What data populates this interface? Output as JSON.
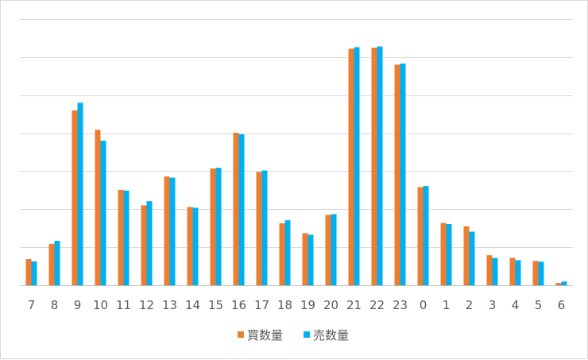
{
  "chart_data": {
    "type": "bar",
    "categories": [
      "7",
      "8",
      "9",
      "10",
      "11",
      "12",
      "13",
      "14",
      "15",
      "16",
      "17",
      "18",
      "19",
      "20",
      "21",
      "22",
      "23",
      "0",
      "1",
      "2",
      "3",
      "4",
      "5",
      "6"
    ],
    "series": [
      {
        "name": "買数量",
        "color": "#ED7D31",
        "values": [
          6.9,
          10.9,
          46.0,
          40.9,
          25.1,
          21.0,
          28.6,
          20.6,
          30.7,
          40.1,
          29.8,
          16.3,
          13.7,
          18.5,
          62.2,
          62.5,
          58.0,
          25.8,
          16.4,
          15.5,
          7.9,
          7.2,
          6.4,
          0.6
        ]
      },
      {
        "name": "売数量",
        "color": "#00B0F0",
        "values": [
          6.3,
          11.7,
          48.0,
          38.0,
          24.9,
          22.1,
          28.3,
          20.4,
          30.9,
          39.7,
          30.2,
          17.1,
          13.3,
          18.7,
          62.6,
          62.8,
          58.3,
          26.1,
          16.1,
          14.1,
          7.2,
          6.6,
          6.2,
          1.0
        ]
      }
    ],
    "ylim": [
      0,
      70
    ],
    "gridline_step": 10,
    "y_tick_labels_shown": false,
    "grid": true,
    "legend_position": "bottom"
  }
}
